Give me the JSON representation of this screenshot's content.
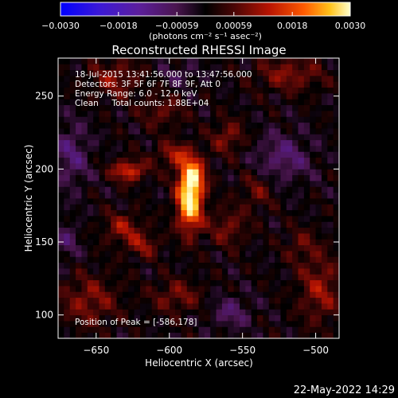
{
  "chart_data": {
    "type": "heatmap",
    "title": "Reconstructed RHESSI Image",
    "xlabel": "Heliocentric X (arcsec)",
    "ylabel": "Heliocentric Y (arcsec)",
    "xlim": [
      -676,
      -484
    ],
    "ylim": [
      84,
      276
    ],
    "x_ticks": [
      -650,
      -600,
      -550,
      -500
    ],
    "y_ticks": [
      100,
      150,
      200,
      250
    ],
    "x_tick_labels": [
      "−650",
      "−600",
      "−550",
      "−500"
    ],
    "y_tick_labels": [
      "100",
      "150",
      "200",
      "250"
    ],
    "colorbar": {
      "range": [
        -0.003,
        0.003
      ],
      "tick_values": [
        -0.003,
        -0.0018,
        -0.00059,
        0.00059,
        0.0018,
        0.003
      ],
      "tick_labels": [
        "−0.0030",
        "−0.0018",
        "−0.00059",
        "0.00059",
        "0.0018",
        "0.0030"
      ],
      "unit_label": "(photons cm⁻² s⁻¹ asec⁻²)"
    },
    "annotations": [
      "18-Jul-2015 13:41:56.000 to 13:47:56.000",
      "Detectors: 3F 5F 6F 7F 8F 9F, Att 0",
      "Energy Range: 6.0 - 12.0 keV",
      "Clean     Total counts: 1.88E+04"
    ],
    "peak_label": "Position of Peak = [-586,178]",
    "peak": {
      "x": -586,
      "y": 178,
      "value": 0.003
    },
    "sources": [
      {
        "x": -586,
        "y": 178,
        "value": 0.003,
        "sx": 6,
        "sy": 14
      },
      {
        "x": -584,
        "y": 196,
        "value": 0.0018,
        "sx": 6,
        "sy": 8
      },
      {
        "x": -628,
        "y": 199,
        "value": 0.0016,
        "sx": 8,
        "sy": 5
      },
      {
        "x": -596,
        "y": 210,
        "value": 0.0011,
        "sx": 9,
        "sy": 6
      },
      {
        "x": -560,
        "y": 222,
        "value": 0.0009,
        "sx": 8,
        "sy": 8
      },
      {
        "x": -632,
        "y": 160,
        "value": 0.001,
        "sx": 9,
        "sy": 7
      },
      {
        "x": -618,
        "y": 148,
        "value": 0.0009,
        "sx": 8,
        "sy": 6
      },
      {
        "x": -560,
        "y": 160,
        "value": 0.0008,
        "sx": 9,
        "sy": 9
      },
      {
        "x": -540,
        "y": 185,
        "value": 0.0007,
        "sx": 8,
        "sy": 9
      },
      {
        "x": -655,
        "y": 110,
        "value": 0.0009,
        "sx": 14,
        "sy": 12
      },
      {
        "x": -595,
        "y": 113,
        "value": 0.0008,
        "sx": 12,
        "sy": 8
      },
      {
        "x": -497,
        "y": 118,
        "value": 0.001,
        "sx": 10,
        "sy": 16
      },
      {
        "x": -518,
        "y": 265,
        "value": 0.0009,
        "sx": 16,
        "sy": 8
      },
      {
        "x": -637,
        "y": 262,
        "value": 0.0009,
        "sx": 12,
        "sy": 9
      },
      {
        "x": -605,
        "y": 240,
        "value": 0.0007,
        "sx": 10,
        "sy": 8
      },
      {
        "x": -510,
        "y": 148,
        "value": 0.0006,
        "sx": 8,
        "sy": 8
      },
      {
        "x": -667,
        "y": 210,
        "value": -0.0008,
        "sx": 9,
        "sy": 16
      },
      {
        "x": -522,
        "y": 208,
        "value": -0.0008,
        "sx": 14,
        "sy": 12
      },
      {
        "x": -558,
        "y": 102,
        "value": -0.0007,
        "sx": 10,
        "sy": 8
      },
      {
        "x": -592,
        "y": 265,
        "value": -0.0005,
        "sx": 10,
        "sy": 6
      },
      {
        "x": -670,
        "y": 150,
        "value": -0.0006,
        "sx": 6,
        "sy": 10
      }
    ]
  },
  "footer": {
    "date_stamp": "22-May-2022 14:29"
  }
}
